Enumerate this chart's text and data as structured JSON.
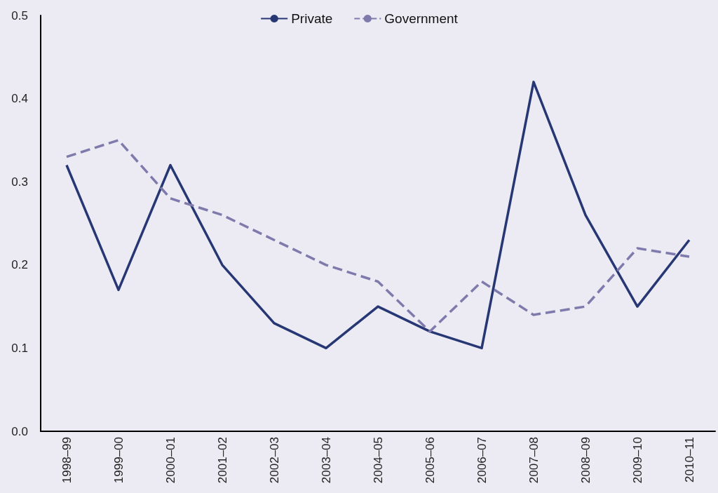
{
  "chart_data": {
    "type": "line",
    "categories": [
      "1998–99",
      "1999–00",
      "2000–01",
      "2001–02",
      "2002–03",
      "2003–04",
      "2004–05",
      "2005–06",
      "2006–07",
      "2007–08",
      "2008–09",
      "2009–10",
      "2010–11"
    ],
    "series": [
      {
        "name": "Private",
        "color": "#263774",
        "line_style": "solid",
        "values": [
          0.32,
          0.17,
          0.32,
          0.2,
          0.13,
          0.1,
          0.15,
          0.12,
          0.1,
          0.42,
          0.26,
          0.15,
          0.23
        ]
      },
      {
        "name": "Government",
        "color": "#7f7aac",
        "line_style": "dashed",
        "values": [
          0.33,
          0.35,
          0.28,
          0.26,
          0.23,
          0.2,
          0.18,
          0.12,
          0.18,
          0.14,
          0.15,
          0.22,
          0.21
        ]
      }
    ],
    "ylim": [
      0,
      0.5
    ],
    "yticks": [
      {
        "value": 0,
        "label": "0.0"
      },
      {
        "value": 0.1,
        "label": "0.1"
      },
      {
        "value": 0.2,
        "label": "0.2"
      },
      {
        "value": 0.3,
        "label": "0.3"
      },
      {
        "value": 0.4,
        "label": "0.4"
      },
      {
        "value": 0.5,
        "label": "0.5"
      }
    ],
    "grid": false,
    "legend": "top",
    "marker": "none"
  }
}
